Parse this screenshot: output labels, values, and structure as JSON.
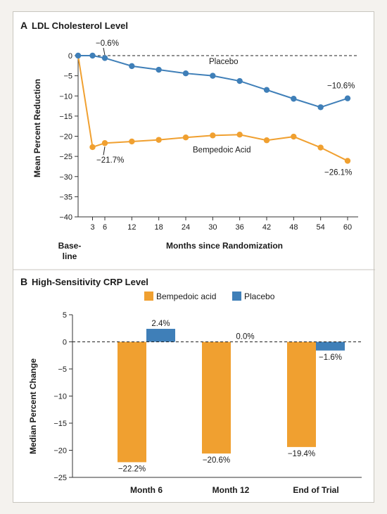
{
  "colors": {
    "bempedoic": "#f0a030",
    "placebo": "#3f7fb8",
    "frame_bg": "#ffffff",
    "page_bg": "#f4f2ee",
    "axis": "#333333"
  },
  "chart_data": [
    {
      "type": "line",
      "panel": "A",
      "title": "LDL Cholesterol Level",
      "xlabel": "Months since Randomization",
      "ylabel": "Mean Percent Reduction",
      "x": [
        0,
        3,
        6,
        12,
        18,
        24,
        30,
        36,
        42,
        48,
        54,
        60
      ],
      "xticks": [
        "Base-line",
        "3",
        "6",
        "12",
        "18",
        "24",
        "30",
        "36",
        "42",
        "48",
        "54",
        "60"
      ],
      "base_tick_line1": "Base-",
      "base_tick_line2": "line",
      "ylim": [
        -40,
        0
      ],
      "yticks": [
        0,
        -5,
        -10,
        -15,
        -20,
        -25,
        -30,
        -35,
        -40
      ],
      "series": [
        {
          "name": "Placebo",
          "color": "#3f7fb8",
          "values": [
            0,
            0,
            -0.6,
            -2.6,
            -3.5,
            -4.4,
            -5.0,
            -6.3,
            -8.5,
            -10.7,
            -12.8,
            -10.6
          ]
        },
        {
          "name": "Bempedoic Acid",
          "color": "#f0a030",
          "values": [
            0,
            -22.7,
            -21.7,
            -21.3,
            -20.9,
            -20.3,
            -19.8,
            -19.6,
            -21.0,
            -20.1,
            -22.8,
            -26.1
          ]
        }
      ],
      "annotations": [
        {
          "text": "−0.6%"
        },
        {
          "text": "−10.6%"
        },
        {
          "text": "−21.7%"
        },
        {
          "text": "−26.1%"
        }
      ],
      "grid": false
    },
    {
      "type": "bar",
      "panel": "B",
      "title": "High-Sensitivity CRP Level",
      "xlabel": "",
      "ylabel": "Median Percent Change",
      "categories": [
        "Month 6",
        "Month 12",
        "End of Trial"
      ],
      "ylim": [
        -25,
        5
      ],
      "yticks": [
        5,
        0,
        -5,
        -10,
        -15,
        -20,
        -25
      ],
      "series": [
        {
          "name": "Bempedoic acid",
          "color": "#f0a030",
          "values": [
            -22.2,
            -20.6,
            -19.4
          ],
          "labels": [
            "−22.2%",
            "−20.6%",
            "−19.4%"
          ]
        },
        {
          "name": "Placebo",
          "color": "#3f7fb8",
          "values": [
            2.4,
            0.0,
            -1.6
          ],
          "labels": [
            "2.4%",
            "0.0%",
            "−1.6%"
          ]
        }
      ],
      "legend_position": "top",
      "grid": false
    }
  ]
}
